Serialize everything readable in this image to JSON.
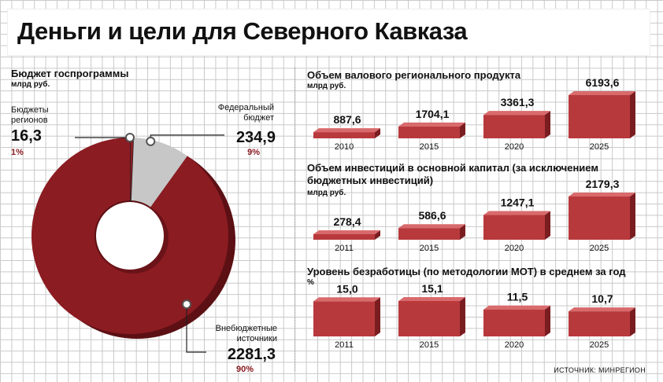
{
  "title": "Деньги и цели для Северного Кавказа",
  "source": "ИСТОЧНИК: МИНРЕГИОН",
  "colors": {
    "bar": "#b8393c",
    "bar_top": "#d96a6c",
    "bar_side": "#7a1d21",
    "pie_main": "#8b1c22",
    "pie_light": "#c7c7c7"
  },
  "chart_data": [
    {
      "type": "pie",
      "title": "Бюджет госпрограммы",
      "unit": "млрд руб.",
      "slices": [
        {
          "label": "Бюджеты регионов",
          "value": 16.3,
          "value_text": "16,3",
          "percent_text": "1%"
        },
        {
          "label": "Федеральный бюджет",
          "value": 234.9,
          "value_text": "234,9",
          "percent_text": "9%"
        },
        {
          "label": "Внебюджетные источники",
          "value": 2281.3,
          "value_text": "2281,3",
          "percent_text": "90%"
        }
      ]
    },
    {
      "type": "bar",
      "title": "Объем валового регионального продукта",
      "unit": "млрд руб.",
      "categories": [
        "2010",
        "2015",
        "2020",
        "2025"
      ],
      "values": [
        887.6,
        1704.1,
        3361.3,
        6193.6
      ],
      "value_labels": [
        "887,6",
        "1704,1",
        "3361,3",
        "6193,6"
      ]
    },
    {
      "type": "bar",
      "title": "Объем инвестиций в основной капитал (за исключением бюджетных инвестиций)",
      "unit": "млрд руб.",
      "categories": [
        "2011",
        "2015",
        "2020",
        "2025"
      ],
      "values": [
        278.4,
        586.6,
        1247.1,
        2179.3
      ],
      "value_labels": [
        "278,4",
        "586,6",
        "1247,1",
        "2179,3"
      ]
    },
    {
      "type": "bar",
      "title": "Уровень безработицы (по методологии МОТ) в среднем за год",
      "unit": "%",
      "categories": [
        "2011",
        "2015",
        "2020",
        "2025"
      ],
      "values": [
        15.0,
        15.1,
        11.5,
        10.7
      ],
      "value_labels": [
        "15,0",
        "15,1",
        "11,5",
        "10,7"
      ]
    }
  ]
}
